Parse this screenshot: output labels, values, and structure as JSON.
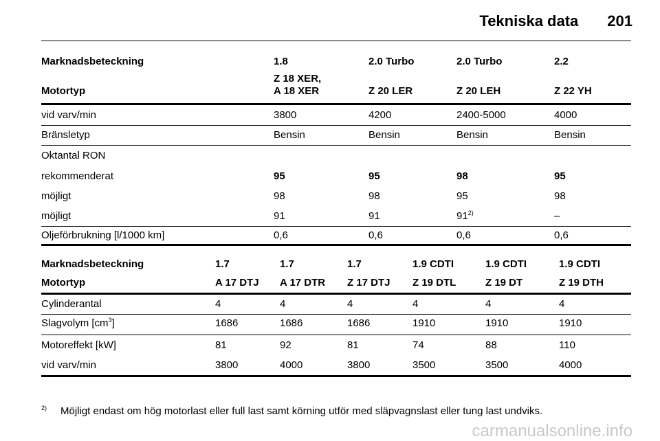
{
  "header": {
    "title": "Tekniska data",
    "page": "201"
  },
  "table1": {
    "rows": [
      [
        "Marknadsbeteckning",
        "1.8",
        "2.0 Turbo",
        "2.0 Turbo",
        "2.2"
      ],
      [
        "Motortyp",
        "Z 18 XER,\nA 18 XER",
        "Z 20 LER",
        "Z 20 LEH",
        "Z 22 YH"
      ],
      [
        "vid varv/min",
        "3800",
        "4200",
        "2400-5000",
        "4000"
      ],
      [
        "Bränsletyp",
        "Bensin",
        "Bensin",
        "Bensin",
        "Bensin"
      ],
      [
        "Oktantal RON"
      ],
      [
        "rekommenderat",
        "95",
        "95",
        "98",
        "95"
      ],
      [
        "möjligt",
        "98",
        "98",
        "95",
        "98"
      ],
      [
        "möjligt",
        "91",
        "91",
        {
          "text": "91",
          "sup": "2)"
        },
        "–"
      ],
      [
        "Oljeförbrukning [l/1000 km]",
        "0,6",
        "0,6",
        "0,6",
        "0,6"
      ]
    ]
  },
  "table2": {
    "rows": [
      [
        "Marknadsbeteckning",
        "1.7",
        "1.7",
        "1.7",
        "1.9 CDTI",
        "1.9 CDTI",
        "1.9 CDTI"
      ],
      [
        "Motortyp",
        "A 17 DTJ",
        "A 17 DTR",
        "Z 17 DTJ",
        "Z 19 DTL",
        "Z 19 DT",
        "Z 19 DTH"
      ],
      [
        "Cylinderantal",
        "4",
        "4",
        "4",
        "4",
        "4",
        "4"
      ],
      [
        {
          "text": "Slagvolym [cm",
          "sup": "3",
          "after": "]"
        },
        "1686",
        "1686",
        "1686",
        "1910",
        "1910",
        "1910"
      ],
      [
        "Motoreffekt [kW]",
        "81",
        "92",
        "81",
        "74",
        "88",
        "110"
      ],
      [
        "vid varv/min",
        "3800",
        "4000",
        "3800",
        "3500",
        "3500",
        "4000"
      ]
    ]
  },
  "footnote": {
    "marker": "2)",
    "text": "Möjligt endast om hög motorlast eller full last samt körning utför med släpvagnslast eller tung last undviks."
  },
  "watermark": "carmanualsonline.info"
}
